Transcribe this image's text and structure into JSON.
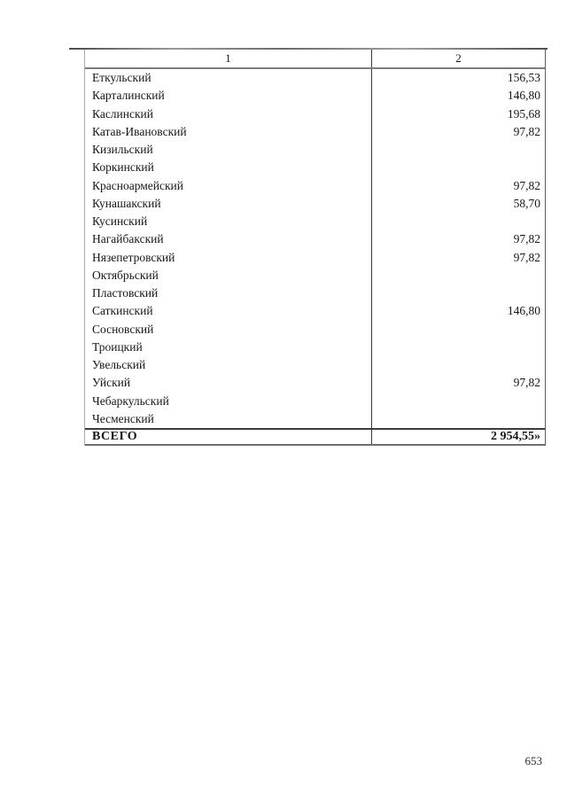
{
  "table": {
    "header": {
      "col1": "1",
      "col2": "2"
    },
    "rows": [
      {
        "name": "Еткульский",
        "value": "156,53"
      },
      {
        "name": "Карталинский",
        "value": "146,80"
      },
      {
        "name": "Каслинский",
        "value": "195,68"
      },
      {
        "name": "Катав-Ивановский",
        "value": "97,82"
      },
      {
        "name": "Кизильский",
        "value": ""
      },
      {
        "name": "Коркинский",
        "value": ""
      },
      {
        "name": "Красноармейский",
        "value": "97,82"
      },
      {
        "name": "Кунашакский",
        "value": "58,70"
      },
      {
        "name": "Кусинский",
        "value": ""
      },
      {
        "name": "Нагайбакский",
        "value": "97,82"
      },
      {
        "name": "Нязепетровский",
        "value": "97,82"
      },
      {
        "name": "Октябрьский",
        "value": ""
      },
      {
        "name": "Пластовский",
        "value": ""
      },
      {
        "name": "Саткинский",
        "value": "146,80"
      },
      {
        "name": "Сосновский",
        "value": ""
      },
      {
        "name": "Троицкий",
        "value": ""
      },
      {
        "name": "Увельский",
        "value": ""
      },
      {
        "name": "Уйский",
        "value": "97,82"
      },
      {
        "name": "Чебаркульский",
        "value": ""
      },
      {
        "name": "Чесменский",
        "value": ""
      }
    ],
    "total": {
      "label": "ВСЕГО",
      "value": "2 954,55»"
    }
  },
  "page": {
    "number": "653"
  }
}
